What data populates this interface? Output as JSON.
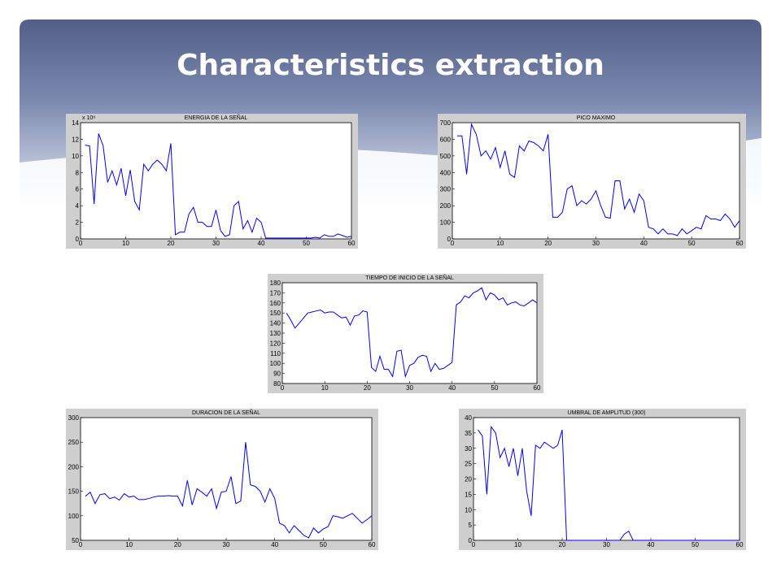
{
  "title": "Characteristics extraction",
  "chart_data": [
    {
      "type": "line",
      "title": "ENERGIA DE LA SEÑAL",
      "scale_label": "x 10⁸",
      "color": "#0000ff",
      "x": [
        1,
        2,
        3,
        4,
        5,
        6,
        7,
        8,
        9,
        10,
        11,
        12,
        13,
        14,
        15,
        16,
        17,
        18,
        19,
        20,
        21,
        22,
        23,
        24,
        25,
        26,
        27,
        28,
        29,
        30,
        31,
        32,
        33,
        34,
        35,
        36,
        37,
        38,
        39,
        40,
        41,
        42,
        43,
        44,
        45,
        46,
        47,
        48,
        49,
        50,
        51,
        52,
        53,
        54,
        55,
        56,
        57,
        58,
        59,
        60
      ],
      "values": [
        11.3,
        11.2,
        4.2,
        12.7,
        11.2,
        6.8,
        8.2,
        6.5,
        8.5,
        5.2,
        8.3,
        4.5,
        3.5,
        9,
        8.2,
        9,
        9.5,
        9,
        8.2,
        11.5,
        0.5,
        0.8,
        0.8,
        3,
        3.8,
        2,
        2,
        1.5,
        1.5,
        3.5,
        1,
        0.3,
        0.5,
        4,
        4.5,
        1.2,
        2.2,
        0.8,
        2.5,
        2,
        0.1,
        0.1,
        0.1,
        0.1,
        0.1,
        0.1,
        0.1,
        0.1,
        0.1,
        0.1,
        0.1,
        0.2,
        0.1,
        0.5,
        0.3,
        0.3,
        0.6,
        0.4,
        0.2,
        0.3
      ],
      "xlim": [
        0,
        60
      ],
      "xticks": [
        0,
        10,
        20,
        30,
        40,
        50,
        60
      ],
      "ylim": [
        0,
        14
      ],
      "yticks": [
        0,
        2,
        4,
        6,
        8,
        10,
        12,
        14
      ]
    },
    {
      "type": "line",
      "title": "PICO MAXIMO",
      "color": "#0000ff",
      "x": [
        1,
        2,
        3,
        4,
        5,
        6,
        7,
        8,
        9,
        10,
        11,
        12,
        13,
        14,
        15,
        16,
        17,
        18,
        19,
        20,
        21,
        22,
        23,
        24,
        25,
        26,
        27,
        28,
        29,
        30,
        31,
        32,
        33,
        34,
        35,
        36,
        37,
        38,
        39,
        40,
        41,
        42,
        43,
        44,
        45,
        46,
        47,
        48,
        49,
        50,
        51,
        52,
        53,
        54,
        55,
        56,
        57,
        58,
        59,
        60
      ],
      "values": [
        620,
        620,
        390,
        690,
        630,
        500,
        530,
        480,
        550,
        430,
        530,
        390,
        370,
        560,
        530,
        590,
        580,
        560,
        530,
        630,
        130,
        130,
        160,
        300,
        320,
        200,
        230,
        210,
        240,
        290,
        200,
        130,
        125,
        350,
        350,
        180,
        240,
        160,
        270,
        230,
        70,
        60,
        30,
        60,
        30,
        30,
        20,
        60,
        30,
        50,
        70,
        60,
        140,
        120,
        120,
        110,
        150,
        120,
        70,
        110
      ],
      "xlim": [
        0,
        60
      ],
      "xticks": [
        0,
        10,
        20,
        30,
        40,
        50,
        60
      ],
      "ylim": [
        0,
        700
      ],
      "yticks": [
        0,
        100,
        200,
        300,
        400,
        500,
        600,
        700
      ]
    },
    {
      "type": "line",
      "title": "TIEMPO DE INICIO DE LA SEÑAL",
      "color": "#0000ff",
      "x": [
        1,
        2,
        3,
        4,
        5,
        6,
        7,
        8,
        9,
        10,
        11,
        12,
        13,
        14,
        15,
        16,
        17,
        18,
        19,
        20,
        21,
        22,
        23,
        24,
        25,
        26,
        27,
        28,
        29,
        30,
        31,
        32,
        33,
        34,
        35,
        36,
        37,
        38,
        39,
        40,
        41,
        42,
        43,
        44,
        45,
        46,
        47,
        48,
        49,
        50,
        51,
        52,
        53,
        54,
        55,
        56,
        57,
        58,
        59,
        60
      ],
      "values": [
        150,
        143,
        135,
        140,
        145,
        150,
        151,
        152,
        153,
        150,
        151,
        151,
        148,
        145,
        146,
        138,
        147,
        148,
        152,
        151,
        96,
        92,
        107,
        94,
        94,
        87,
        112,
        113,
        87,
        98,
        100,
        106,
        108,
        107,
        92,
        100,
        94,
        95,
        98,
        101,
        158,
        161,
        167,
        165,
        170,
        172,
        175,
        163,
        170,
        168,
        163,
        165,
        158,
        160,
        161,
        158,
        157,
        160,
        163,
        160
      ],
      "xlim": [
        0,
        60
      ],
      "xticks": [
        0,
        10,
        20,
        30,
        40,
        50,
        60
      ],
      "ylim": [
        80,
        180
      ],
      "yticks": [
        80,
        90,
        100,
        110,
        120,
        130,
        140,
        150,
        160,
        170,
        180
      ]
    },
    {
      "type": "line",
      "title": "DURACION DE LA SEÑAL",
      "color": "#0000ff",
      "x": [
        1,
        2,
        3,
        4,
        5,
        6,
        7,
        8,
        9,
        10,
        11,
        12,
        13,
        14,
        15,
        16,
        17,
        18,
        19,
        20,
        21,
        22,
        23,
        24,
        25,
        26,
        27,
        28,
        29,
        30,
        31,
        32,
        33,
        34,
        35,
        36,
        37,
        38,
        39,
        40,
        41,
        42,
        43,
        44,
        45,
        46,
        47,
        48,
        49,
        50,
        51,
        52,
        53,
        54,
        55,
        56,
        57,
        58,
        59,
        60
      ],
      "values": [
        140,
        148,
        125,
        143,
        145,
        135,
        138,
        132,
        145,
        138,
        140,
        133,
        133,
        135,
        138,
        140,
        140,
        141,
        140,
        140,
        120,
        172,
        122,
        155,
        148,
        140,
        155,
        115,
        148,
        150,
        180,
        125,
        130,
        250,
        163,
        160,
        150,
        128,
        155,
        135,
        85,
        80,
        65,
        80,
        70,
        60,
        55,
        75,
        65,
        73,
        78,
        100,
        98,
        95,
        100,
        105,
        95,
        85,
        92,
        100
      ],
      "xlim": [
        0,
        60
      ],
      "xticks": [
        0,
        10,
        20,
        30,
        40,
        50,
        60
      ],
      "ylim": [
        50,
        300
      ],
      "yticks": [
        50,
        100,
        150,
        200,
        250,
        300
      ]
    },
    {
      "type": "line",
      "title": "UMBRAL DE AMPLITUD (300)",
      "color": "#0000ff",
      "x": [
        1,
        2,
        3,
        4,
        5,
        6,
        7,
        8,
        9,
        10,
        11,
        12,
        13,
        14,
        15,
        16,
        17,
        18,
        19,
        20,
        21,
        22,
        23,
        24,
        25,
        26,
        27,
        28,
        29,
        30,
        31,
        32,
        33,
        34,
        35,
        36,
        37,
        38,
        39,
        40,
        41,
        42,
        43,
        44,
        45,
        46,
        47,
        48,
        49,
        50,
        51,
        52,
        53,
        54,
        55,
        56,
        57,
        58,
        59,
        60
      ],
      "values": [
        36,
        34,
        15,
        37,
        35,
        27,
        30,
        24,
        30,
        21,
        30,
        16,
        8,
        31,
        30,
        32,
        31,
        30,
        31,
        36,
        0,
        0,
        0,
        0,
        0,
        0,
        0,
        0,
        0,
        0,
        0,
        0,
        0,
        2,
        3,
        0,
        0,
        0,
        0,
        0,
        0,
        0,
        0,
        0,
        0,
        0,
        0,
        0,
        0,
        0,
        0,
        0,
        0,
        0,
        0,
        0,
        0,
        0,
        0,
        0
      ],
      "xlim": [
        0,
        60
      ],
      "xticks": [
        0,
        10,
        20,
        30,
        40,
        50,
        60
      ],
      "ylim": [
        0,
        40
      ],
      "yticks": [
        0,
        5,
        10,
        15,
        20,
        25,
        30,
        35,
        40
      ]
    }
  ]
}
